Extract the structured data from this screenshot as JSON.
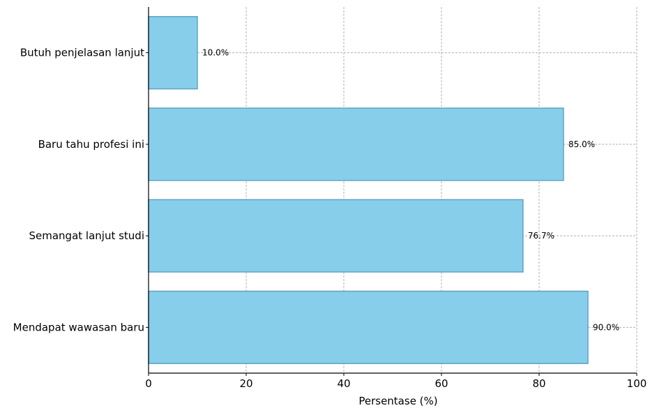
{
  "chart_data": {
    "type": "bar",
    "orientation": "horizontal",
    "categories": [
      "Mendapat wawasan baru",
      "Semangat lanjut studi",
      "Baru tahu profesi ini",
      "Butuh penjelasan lanjut"
    ],
    "values": [
      90.0,
      76.7,
      85.0,
      10.0
    ],
    "data_labels": [
      "90.0%",
      "76.7%",
      "85.0%",
      "10.0%"
    ],
    "title": "",
    "xlabel": "Persentase (%)",
    "ylabel": "",
    "xlim": [
      0,
      100
    ],
    "xticks": [
      0,
      20,
      40,
      60,
      80,
      100
    ],
    "xtick_labels": [
      "0",
      "20",
      "40",
      "60",
      "80",
      "100"
    ],
    "grid": true,
    "colors": {
      "bar_fill": "#87CEEB",
      "bar_edge": "#5fa3c4"
    }
  }
}
